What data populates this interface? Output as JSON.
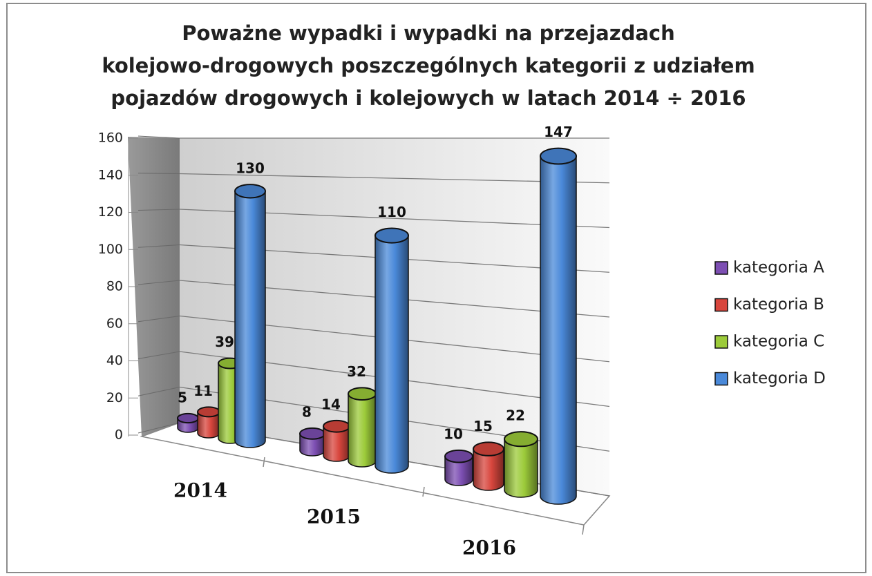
{
  "chart_data": {
    "type": "bar3d",
    "title": [
      "Poważne wypadki i wypadki na przejazdach",
      "kolejowo-drogowych poszczególnych kategorii z udziałem",
      "pojazdów drogowych i kolejowych w latach 2014 ÷ 2016"
    ],
    "categories": [
      "2014",
      "2015",
      "2016"
    ],
    "series": [
      {
        "name": "kategoria A",
        "color": "#7d4fb3",
        "values": [
          5,
          8,
          10
        ]
      },
      {
        "name": "kategoria B",
        "color": "#d8463d",
        "values": [
          11,
          14,
          15
        ]
      },
      {
        "name": "kategoria C",
        "color": "#9ccb3a",
        "values": [
          39,
          32,
          22
        ]
      },
      {
        "name": "kategoria D",
        "color": "#4a89d9",
        "values": [
          130,
          110,
          147
        ]
      }
    ],
    "ylim": [
      0,
      160
    ],
    "yticks": [
      0,
      20,
      40,
      60,
      80,
      100,
      120,
      140,
      160
    ],
    "grid": true,
    "legend": "right"
  }
}
